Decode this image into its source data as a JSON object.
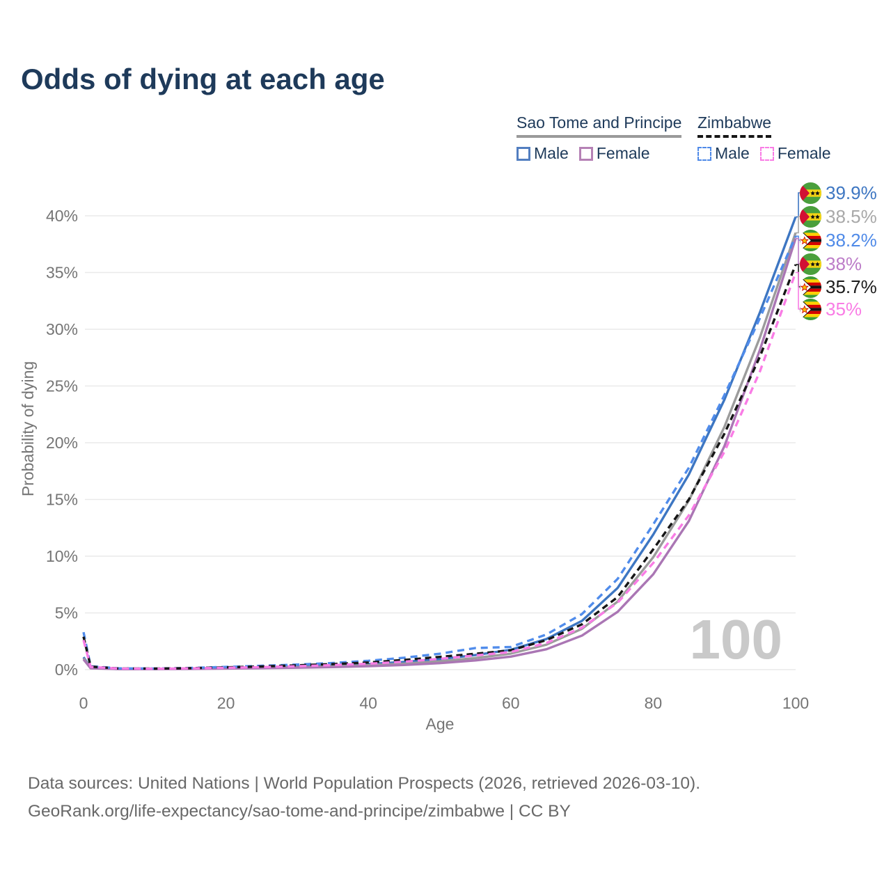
{
  "title": "Odds of dying at each age",
  "legend": {
    "groups": [
      {
        "country": "Sao Tome and Principe",
        "line_style": "solid",
        "line_color": "#9a9a9a",
        "items": [
          {
            "label": "Male",
            "color": "#527ec0",
            "style": "solid"
          },
          {
            "label": "Female",
            "color": "#b581b5",
            "style": "solid"
          }
        ]
      },
      {
        "country": "Zimbabwe",
        "line_style": "dashed",
        "line_color": "#161616",
        "items": [
          {
            "label": "Male",
            "color": "#4f8ae8",
            "style": "dashed"
          },
          {
            "label": "Female",
            "color": "#f97ce5",
            "style": "dashed"
          }
        ]
      }
    ]
  },
  "chart_data": {
    "type": "line",
    "title": "Odds of dying at each age",
    "xlabel": "Age",
    "ylabel": "Probability of dying",
    "xlim": [
      0,
      100
    ],
    "ylim": [
      0,
      42.5
    ],
    "grid": "horizontal-only",
    "legend_position": "top-right",
    "watermark": "100",
    "x_ticks": [
      {
        "value": 0,
        "label": "0"
      },
      {
        "value": 20,
        "label": "20"
      },
      {
        "value": 40,
        "label": "40"
      },
      {
        "value": 60,
        "label": "60"
      },
      {
        "value": 80,
        "label": "80"
      },
      {
        "value": 100,
        "label": "100"
      }
    ],
    "y_ticks": [
      {
        "value": 0,
        "label": "0%"
      },
      {
        "value": 5,
        "label": "5%"
      },
      {
        "value": 10,
        "label": "10%"
      },
      {
        "value": 15,
        "label": "15%"
      },
      {
        "value": 20,
        "label": "20%"
      },
      {
        "value": 25,
        "label": "25%"
      },
      {
        "value": 30,
        "label": "30%"
      },
      {
        "value": 35,
        "label": "35%"
      },
      {
        "value": 40,
        "label": "40%"
      }
    ],
    "x": [
      0,
      1,
      5,
      10,
      15,
      20,
      25,
      30,
      35,
      40,
      45,
      50,
      55,
      60,
      65,
      70,
      75,
      80,
      85,
      90,
      95,
      100
    ],
    "series": [
      {
        "id": "stp_male",
        "name": "Sao Tome and Principe — Male",
        "color": "#3d76c2",
        "dash": null,
        "values": [
          1.1,
          0.15,
          0.06,
          0.07,
          0.1,
          0.15,
          0.21,
          0.28,
          0.37,
          0.5,
          0.68,
          0.92,
          1.28,
          1.75,
          2.7,
          4.3,
          7.2,
          11.9,
          17.2,
          23.8,
          31.5,
          39.9
        ]
      },
      {
        "id": "stp_total",
        "name": "Sao Tome and Principe — Both sexes",
        "color": "#9c9c9c",
        "dash": null,
        "values": [
          1.0,
          0.14,
          0.055,
          0.06,
          0.085,
          0.12,
          0.17,
          0.22,
          0.29,
          0.39,
          0.53,
          0.73,
          1.02,
          1.42,
          2.2,
          3.6,
          6.0,
          9.9,
          14.9,
          21.4,
          29.3,
          38.5
        ]
      },
      {
        "id": "stp_female",
        "name": "Sao Tome and Principe — Female",
        "color": "#aa76b4",
        "dash": null,
        "values": [
          0.9,
          0.12,
          0.05,
          0.05,
          0.07,
          0.1,
          0.13,
          0.17,
          0.225,
          0.3,
          0.41,
          0.57,
          0.81,
          1.15,
          1.8,
          3.0,
          5.1,
          8.4,
          13.1,
          19.7,
          28.2,
          38.0
        ]
      },
      {
        "id": "zwe_male",
        "name": "Zimbabwe — Male",
        "color": "#508ceb",
        "dash": "10,7",
        "values": [
          3.3,
          0.3,
          0.11,
          0.1,
          0.15,
          0.24,
          0.34,
          0.45,
          0.58,
          0.78,
          1.05,
          1.4,
          1.9,
          2.0,
          3.1,
          4.9,
          8.0,
          12.8,
          17.8,
          24.2,
          31.0,
          38.2
        ]
      },
      {
        "id": "zwe_total",
        "name": "Zimbabwe — Both sexes",
        "color": "#161616",
        "dash": "9,6",
        "values": [
          2.9,
          0.27,
          0.1,
          0.09,
          0.13,
          0.2,
          0.28,
          0.38,
          0.49,
          0.63,
          0.85,
          1.12,
          1.4,
          1.7,
          2.6,
          4.0,
          6.4,
          10.6,
          15.0,
          20.8,
          27.6,
          35.7
        ]
      },
      {
        "id": "zwe_female",
        "name": "Zimbabwe — Female",
        "color": "#f97ce5",
        "dash": "10,7",
        "values": [
          2.6,
          0.24,
          0.09,
          0.08,
          0.11,
          0.16,
          0.22,
          0.3,
          0.4,
          0.52,
          0.7,
          0.95,
          1.25,
          1.55,
          2.35,
          3.7,
          5.9,
          9.4,
          13.6,
          19.2,
          26.3,
          35.0
        ]
      }
    ],
    "end_labels": [
      {
        "series": "stp_male",
        "flag": "sao-tome-and-principe",
        "value": "39.9%",
        "color": "#3d76c2"
      },
      {
        "series": "stp_total",
        "flag": "sao-tome-and-principe",
        "value": "38.5%",
        "color": "#a8a8a8"
      },
      {
        "series": "zwe_male",
        "flag": "zimbabwe",
        "value": "38.2%",
        "color": "#4f8ae8"
      },
      {
        "series": "stp_female",
        "flag": "sao-tome-and-principe",
        "value": "38%",
        "color": "#bc7cc8"
      },
      {
        "series": "zwe_total",
        "flag": "zimbabwe",
        "value": "35.7%",
        "color": "#1c1c1c"
      },
      {
        "series": "zwe_female",
        "flag": "zimbabwe",
        "value": "35%",
        "color": "#f97ce5"
      }
    ]
  },
  "footer": {
    "line1": "Data sources: United Nations | World Population Prospects (2026, retrieved 2026-03-10).",
    "line2": "GeoRank.org/life-expectancy/sao-tome-and-principe/zimbabwe | CC BY"
  }
}
